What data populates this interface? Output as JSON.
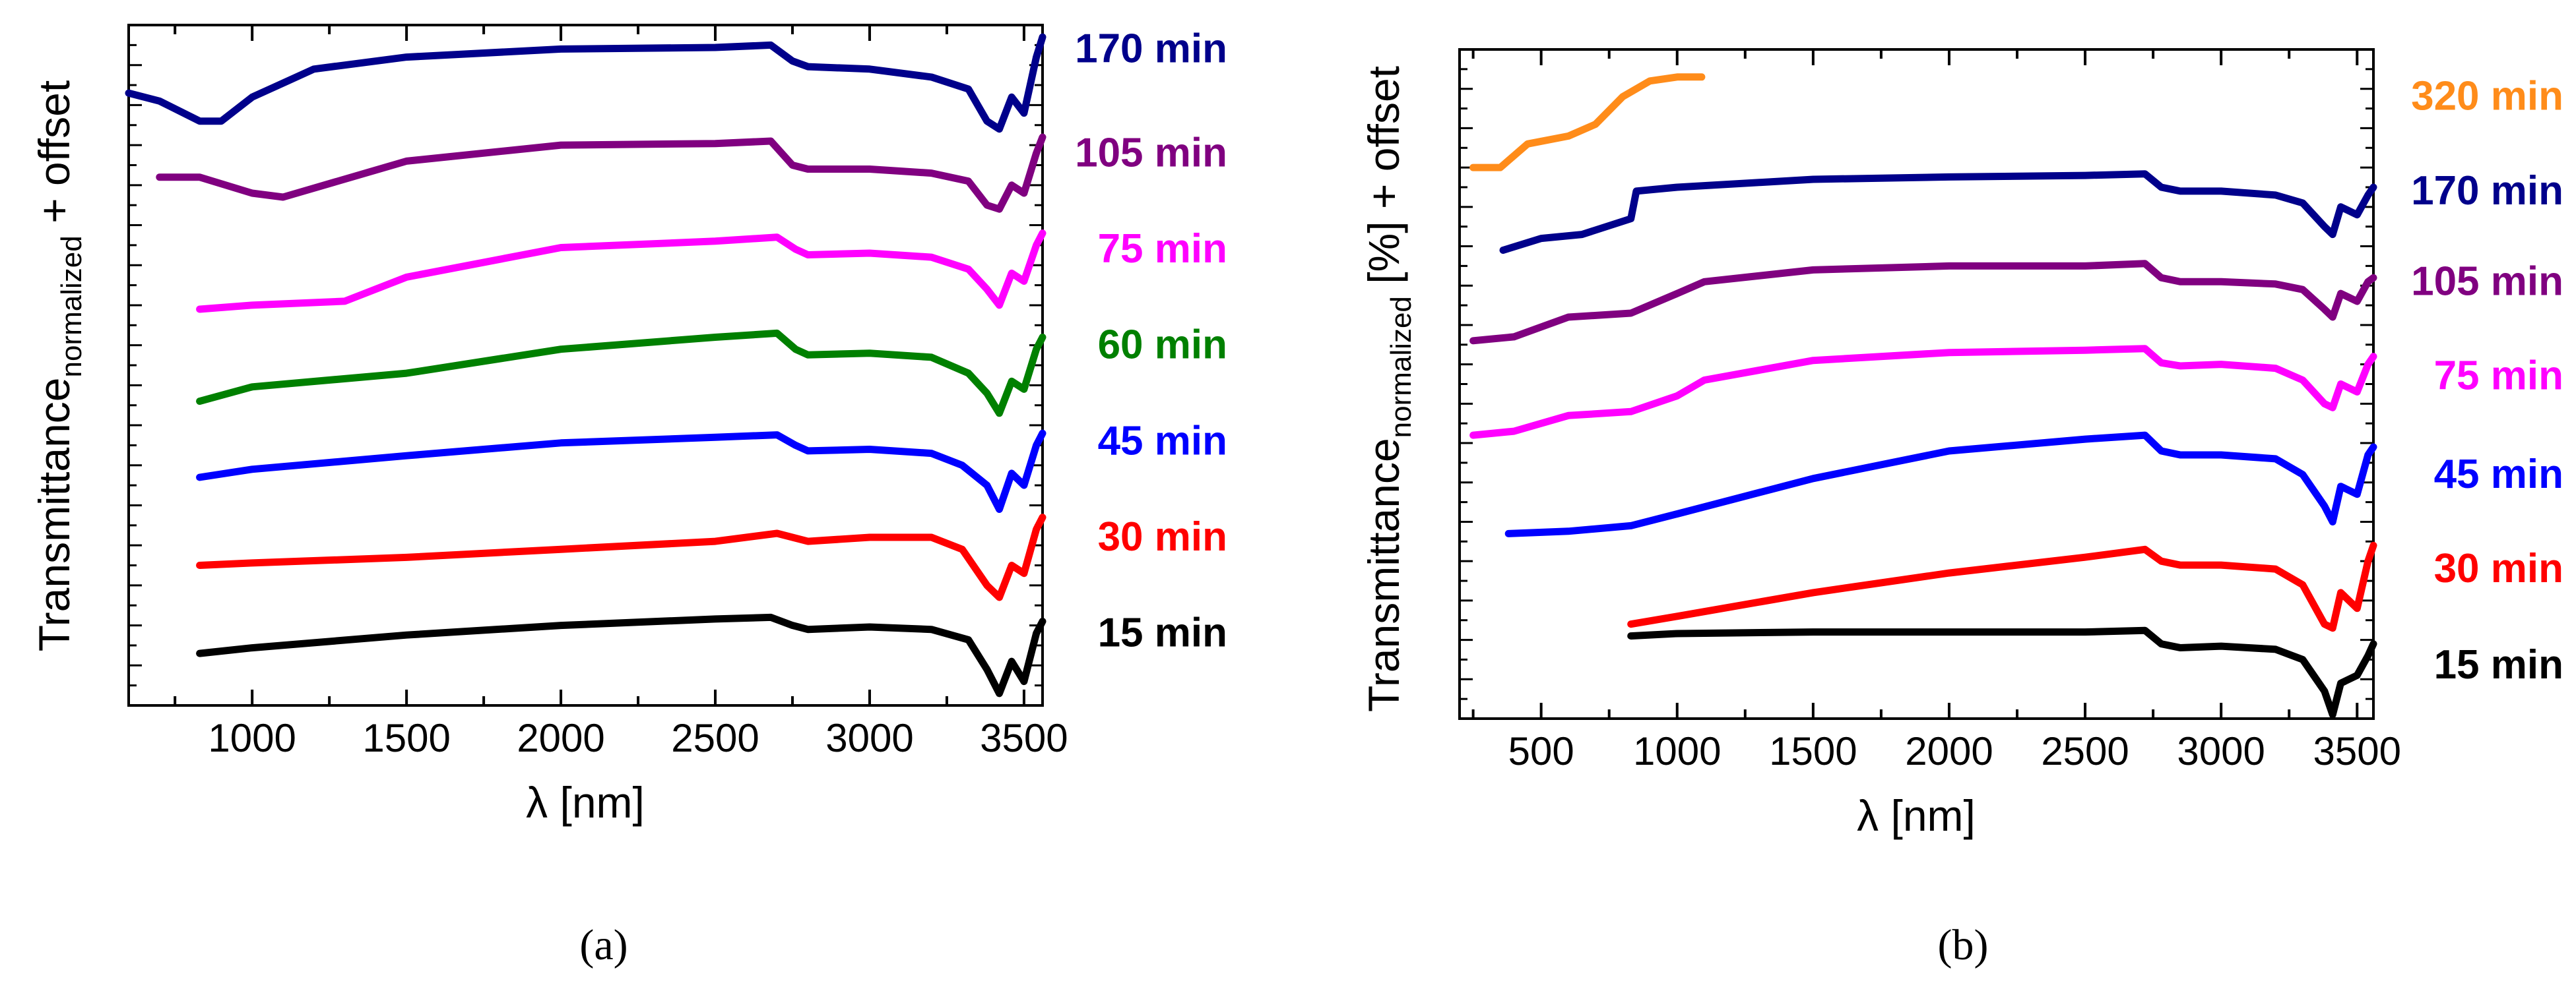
{
  "figure": {
    "caption_a": "(a)",
    "caption_b": "(b)"
  },
  "chart_data": [
    {
      "id": "a",
      "type": "line",
      "xlabel": "λ [nm]",
      "ylabel_main": "Transmittance",
      "ylabel_sub": "normalized",
      "ylabel_tail": " + offset",
      "xlim": [
        600,
        3560
      ],
      "xticks": [
        1000,
        1500,
        2000,
        2500,
        3000,
        3500
      ],
      "ylim": [
        0,
        8.5
      ],
      "series": [
        {
          "name": "15 min",
          "color": "#000000",
          "label_value": 0.9,
          "points": [
            [
              830,
              0.65
            ],
            [
              1000,
              0.72
            ],
            [
              1500,
              0.88
            ],
            [
              2000,
              1.0
            ],
            [
              2500,
              1.08
            ],
            [
              2680,
              1.1
            ],
            [
              2750,
              1.0
            ],
            [
              2800,
              0.95
            ],
            [
              3000,
              0.98
            ],
            [
              3200,
              0.95
            ],
            [
              3320,
              0.82
            ],
            [
              3380,
              0.45
            ],
            [
              3420,
              0.15
            ],
            [
              3460,
              0.55
            ],
            [
              3500,
              0.3
            ],
            [
              3540,
              0.9
            ],
            [
              3560,
              1.05
            ]
          ]
        },
        {
          "name": "30 min",
          "color": "#ff0000",
          "label_value": 2.1,
          "points": [
            [
              830,
              1.75
            ],
            [
              1000,
              1.78
            ],
            [
              1500,
              1.85
            ],
            [
              2000,
              1.95
            ],
            [
              2500,
              2.05
            ],
            [
              2700,
              2.15
            ],
            [
              2800,
              2.05
            ],
            [
              3000,
              2.1
            ],
            [
              3200,
              2.1
            ],
            [
              3300,
              1.95
            ],
            [
              3380,
              1.5
            ],
            [
              3420,
              1.35
            ],
            [
              3460,
              1.75
            ],
            [
              3500,
              1.65
            ],
            [
              3540,
              2.2
            ],
            [
              3560,
              2.35
            ]
          ]
        },
        {
          "name": "45 min",
          "color": "#0000ff",
          "label_value": 3.3,
          "points": [
            [
              830,
              2.85
            ],
            [
              1000,
              2.95
            ],
            [
              1500,
              3.12
            ],
            [
              2000,
              3.28
            ],
            [
              2500,
              3.35
            ],
            [
              2700,
              3.38
            ],
            [
              2760,
              3.25
            ],
            [
              2800,
              3.18
            ],
            [
              3000,
              3.2
            ],
            [
              3200,
              3.15
            ],
            [
              3300,
              3.0
            ],
            [
              3380,
              2.75
            ],
            [
              3420,
              2.45
            ],
            [
              3460,
              2.9
            ],
            [
              3500,
              2.75
            ],
            [
              3540,
              3.25
            ],
            [
              3560,
              3.4
            ]
          ]
        },
        {
          "name": "60 min",
          "color": "#008000",
          "label_value": 4.5,
          "points": [
            [
              830,
              3.8
            ],
            [
              1000,
              3.98
            ],
            [
              1500,
              4.15
            ],
            [
              2000,
              4.45
            ],
            [
              2500,
              4.6
            ],
            [
              2700,
              4.65
            ],
            [
              2760,
              4.45
            ],
            [
              2800,
              4.38
            ],
            [
              3000,
              4.4
            ],
            [
              3200,
              4.35
            ],
            [
              3320,
              4.15
            ],
            [
              3380,
              3.9
            ],
            [
              3420,
              3.65
            ],
            [
              3460,
              4.05
            ],
            [
              3500,
              3.95
            ],
            [
              3540,
              4.45
            ],
            [
              3560,
              4.6
            ]
          ]
        },
        {
          "name": "75 min",
          "color": "#ff00ff",
          "label_value": 5.7,
          "points": [
            [
              830,
              4.95
            ],
            [
              1000,
              5.0
            ],
            [
              1300,
              5.05
            ],
            [
              1500,
              5.35
            ],
            [
              2000,
              5.72
            ],
            [
              2500,
              5.8
            ],
            [
              2700,
              5.85
            ],
            [
              2760,
              5.7
            ],
            [
              2800,
              5.63
            ],
            [
              3000,
              5.65
            ],
            [
              3200,
              5.6
            ],
            [
              3320,
              5.45
            ],
            [
              3380,
              5.2
            ],
            [
              3420,
              5.0
            ],
            [
              3460,
              5.4
            ],
            [
              3500,
              5.3
            ],
            [
              3540,
              5.75
            ],
            [
              3560,
              5.9
            ]
          ]
        },
        {
          "name": "105 min",
          "color": "#800080",
          "label_value": 6.9,
          "points": [
            [
              700,
              6.6
            ],
            [
              830,
              6.6
            ],
            [
              1000,
              6.4
            ],
            [
              1100,
              6.35
            ],
            [
              1500,
              6.8
            ],
            [
              2000,
              7.0
            ],
            [
              2500,
              7.02
            ],
            [
              2680,
              7.05
            ],
            [
              2750,
              6.75
            ],
            [
              2800,
              6.7
            ],
            [
              3000,
              6.7
            ],
            [
              3200,
              6.65
            ],
            [
              3320,
              6.55
            ],
            [
              3380,
              6.25
            ],
            [
              3420,
              6.2
            ],
            [
              3460,
              6.5
            ],
            [
              3500,
              6.4
            ],
            [
              3540,
              6.9
            ],
            [
              3560,
              7.1
            ]
          ]
        },
        {
          "name": "170 min",
          "color": "#00008b",
          "label_value": 8.2,
          "points": [
            [
              600,
              7.65
            ],
            [
              700,
              7.55
            ],
            [
              830,
              7.3
            ],
            [
              900,
              7.3
            ],
            [
              1000,
              7.6
            ],
            [
              1200,
              7.95
            ],
            [
              1500,
              8.1
            ],
            [
              2000,
              8.2
            ],
            [
              2500,
              8.22
            ],
            [
              2680,
              8.25
            ],
            [
              2750,
              8.05
            ],
            [
              2800,
              7.98
            ],
            [
              3000,
              7.95
            ],
            [
              3200,
              7.85
            ],
            [
              3320,
              7.7
            ],
            [
              3380,
              7.3
            ],
            [
              3420,
              7.2
            ],
            [
              3460,
              7.6
            ],
            [
              3500,
              7.4
            ],
            [
              3540,
              8.1
            ],
            [
              3560,
              8.35
            ]
          ]
        }
      ]
    },
    {
      "id": "b",
      "type": "line",
      "xlabel": "λ [nm]",
      "ylabel_main": "Transmittance",
      "ylabel_sub": "normalized",
      "ylabel_tail": " [%] + offset",
      "xlim": [
        200,
        3560
      ],
      "xticks": [
        500,
        1000,
        1500,
        2000,
        2500,
        3000,
        3500
      ],
      "ylim": [
        0,
        8.5
      ],
      "series": [
        {
          "name": "15 min",
          "color": "#000000",
          "label_value": 0.68,
          "points": [
            [
              830,
              1.05
            ],
            [
              1000,
              1.08
            ],
            [
              1500,
              1.1
            ],
            [
              2000,
              1.1
            ],
            [
              2500,
              1.1
            ],
            [
              2720,
              1.12
            ],
            [
              2780,
              0.95
            ],
            [
              2850,
              0.9
            ],
            [
              3000,
              0.92
            ],
            [
              3200,
              0.88
            ],
            [
              3300,
              0.75
            ],
            [
              3380,
              0.35
            ],
            [
              3410,
              0.05
            ],
            [
              3440,
              0.45
            ],
            [
              3500,
              0.55
            ],
            [
              3540,
              0.8
            ],
            [
              3560,
              0.95
            ]
          ]
        },
        {
          "name": "30 min",
          "color": "#ff0000",
          "label_value": 1.9,
          "points": [
            [
              830,
              1.2
            ],
            [
              1000,
              1.3
            ],
            [
              1500,
              1.6
            ],
            [
              2000,
              1.85
            ],
            [
              2500,
              2.05
            ],
            [
              2720,
              2.15
            ],
            [
              2780,
              2.0
            ],
            [
              2850,
              1.95
            ],
            [
              3000,
              1.95
            ],
            [
              3200,
              1.9
            ],
            [
              3300,
              1.7
            ],
            [
              3380,
              1.2
            ],
            [
              3410,
              1.15
            ],
            [
              3440,
              1.6
            ],
            [
              3500,
              1.4
            ],
            [
              3540,
              2.0
            ],
            [
              3560,
              2.2
            ]
          ]
        },
        {
          "name": "45 min",
          "color": "#0000ff",
          "label_value": 3.1,
          "points": [
            [
              380,
              2.35
            ],
            [
              600,
              2.38
            ],
            [
              830,
              2.45
            ],
            [
              1000,
              2.6
            ],
            [
              1500,
              3.05
            ],
            [
              2000,
              3.4
            ],
            [
              2500,
              3.55
            ],
            [
              2720,
              3.6
            ],
            [
              2780,
              3.4
            ],
            [
              2850,
              3.35
            ],
            [
              3000,
              3.35
            ],
            [
              3200,
              3.3
            ],
            [
              3300,
              3.1
            ],
            [
              3380,
              2.7
            ],
            [
              3410,
              2.5
            ],
            [
              3440,
              2.95
            ],
            [
              3500,
              2.85
            ],
            [
              3540,
              3.35
            ],
            [
              3560,
              3.45
            ]
          ]
        },
        {
          "name": "75 min",
          "color": "#ff00ff",
          "label_value": 4.35,
          "points": [
            [
              250,
              3.6
            ],
            [
              400,
              3.65
            ],
            [
              600,
              3.85
            ],
            [
              830,
              3.9
            ],
            [
              1000,
              4.1
            ],
            [
              1100,
              4.3
            ],
            [
              1500,
              4.55
            ],
            [
              2000,
              4.65
            ],
            [
              2500,
              4.68
            ],
            [
              2720,
              4.7
            ],
            [
              2780,
              4.52
            ],
            [
              2850,
              4.48
            ],
            [
              3000,
              4.5
            ],
            [
              3200,
              4.45
            ],
            [
              3300,
              4.3
            ],
            [
              3380,
              4.0
            ],
            [
              3410,
              3.95
            ],
            [
              3440,
              4.25
            ],
            [
              3500,
              4.15
            ],
            [
              3540,
              4.5
            ],
            [
              3560,
              4.6
            ]
          ]
        },
        {
          "name": "105 min",
          "color": "#800080",
          "label_value": 5.55,
          "points": [
            [
              250,
              4.8
            ],
            [
              400,
              4.85
            ],
            [
              600,
              5.1
            ],
            [
              830,
              5.15
            ],
            [
              1000,
              5.4
            ],
            [
              1100,
              5.55
            ],
            [
              1500,
              5.7
            ],
            [
              2000,
              5.75
            ],
            [
              2500,
              5.75
            ],
            [
              2720,
              5.78
            ],
            [
              2780,
              5.6
            ],
            [
              2850,
              5.55
            ],
            [
              3000,
              5.55
            ],
            [
              3200,
              5.52
            ],
            [
              3300,
              5.45
            ],
            [
              3380,
              5.2
            ],
            [
              3410,
              5.1
            ],
            [
              3440,
              5.4
            ],
            [
              3500,
              5.3
            ],
            [
              3540,
              5.55
            ],
            [
              3560,
              5.6
            ]
          ]
        },
        {
          "name": "170 min",
          "color": "#00008b",
          "label_value": 6.7,
          "points": [
            [
              360,
              5.95
            ],
            [
              500,
              6.1
            ],
            [
              650,
              6.15
            ],
            [
              830,
              6.35
            ],
            [
              850,
              6.7
            ],
            [
              1000,
              6.75
            ],
            [
              1500,
              6.85
            ],
            [
              2000,
              6.88
            ],
            [
              2500,
              6.9
            ],
            [
              2720,
              6.92
            ],
            [
              2780,
              6.75
            ],
            [
              2850,
              6.7
            ],
            [
              3000,
              6.7
            ],
            [
              3200,
              6.65
            ],
            [
              3300,
              6.55
            ],
            [
              3380,
              6.25
            ],
            [
              3410,
              6.15
            ],
            [
              3440,
              6.5
            ],
            [
              3500,
              6.4
            ],
            [
              3540,
              6.65
            ],
            [
              3560,
              6.75
            ]
          ]
        },
        {
          "name": "320 min",
          "color": "#ff8c1a",
          "label_value": 7.9,
          "points": [
            [
              250,
              7.0
            ],
            [
              350,
              7.0
            ],
            [
              450,
              7.3
            ],
            [
              600,
              7.4
            ],
            [
              700,
              7.55
            ],
            [
              800,
              7.9
            ],
            [
              900,
              8.1
            ],
            [
              1000,
              8.15
            ],
            [
              1090,
              8.15
            ]
          ]
        }
      ]
    }
  ]
}
